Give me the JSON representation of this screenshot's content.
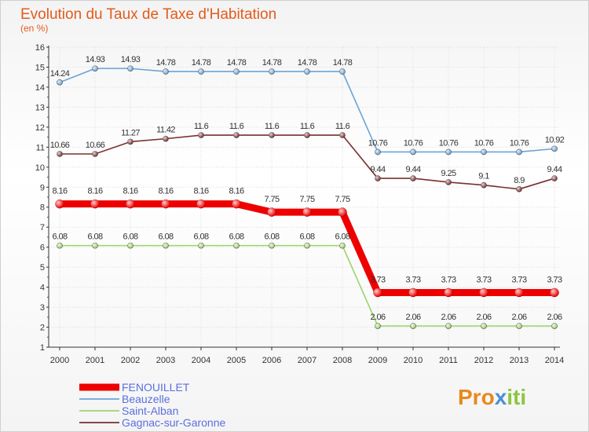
{
  "chart_data": {
    "type": "line",
    "title": "Evolution du Taux de Taxe d'Habitation",
    "subtitle": "(en %)",
    "xlabel": "",
    "ylabel": "",
    "ylim": [
      1,
      16
    ],
    "y_ticks": [
      "1",
      "2",
      "3",
      "4",
      "5",
      "6",
      "7",
      "8",
      "9",
      "10",
      "11",
      "12",
      "13",
      "14",
      "15",
      "16"
    ],
    "categories": [
      "2000",
      "2001",
      "2002",
      "2003",
      "2004",
      "2005",
      "2006",
      "2007",
      "2008",
      "2009",
      "2010",
      "2011",
      "2012",
      "2013",
      "2014"
    ],
    "series": [
      {
        "name": "FENOUILLET",
        "color": "#ee0000",
        "emphasis": true,
        "values": [
          8.16,
          8.16,
          8.16,
          8.16,
          8.16,
          8.16,
          7.75,
          7.75,
          7.75,
          3.73,
          3.73,
          3.73,
          3.73,
          3.73,
          3.73
        ],
        "labels": [
          "8.16",
          "8.16",
          "8.16",
          "8.16",
          "8.16",
          "8.16",
          "7.75",
          "7.75",
          "7.75",
          "3.73",
          "3.73",
          "3.73",
          "3.73",
          "3.73",
          "3.73"
        ]
      },
      {
        "name": "Beauzelle",
        "color": "#6ba3d6",
        "emphasis": false,
        "values": [
          14.24,
          14.93,
          14.93,
          14.78,
          14.78,
          14.78,
          14.78,
          14.78,
          14.78,
          10.76,
          10.76,
          10.76,
          10.76,
          10.76,
          10.92
        ],
        "labels": [
          "14.24",
          "14.93",
          "14.93",
          "14.78",
          "14.78",
          "14.78",
          "14.78",
          "14.78",
          "14.78",
          "10.76",
          "10.76",
          "10.76",
          "10.76",
          "10.76",
          "10.92"
        ]
      },
      {
        "name": "Saint-Alban",
        "color": "#9ed36a",
        "emphasis": false,
        "values": [
          6.08,
          6.08,
          6.08,
          6.08,
          6.08,
          6.08,
          6.08,
          6.08,
          6.08,
          2.06,
          2.06,
          2.06,
          2.06,
          2.06,
          2.06
        ],
        "labels": [
          "6.08",
          "6.08",
          "6.08",
          "6.08",
          "6.08",
          "6.08",
          "6.08",
          "6.08",
          "6.08",
          "2.06",
          "2.06",
          "2.06",
          "2.06",
          "2.06",
          "2.06"
        ]
      },
      {
        "name": "Gagnac-sur-Garonne",
        "color": "#7a2f2f",
        "emphasis": false,
        "values": [
          10.66,
          10.66,
          11.27,
          11.42,
          11.6,
          11.6,
          11.6,
          11.6,
          11.6,
          9.44,
          9.44,
          9.25,
          9.1,
          8.9,
          9.44
        ],
        "labels": [
          "10.66",
          "10.66",
          "11.27",
          "11.42",
          "11.6",
          "11.6",
          "11.6",
          "11.6",
          "11.6",
          "9.44",
          "9.44",
          "9.25",
          "9.1",
          "8.9",
          "9.44"
        ]
      }
    ]
  },
  "brand": {
    "part1": "Pro",
    "part2": "x",
    "part3": "iti"
  }
}
